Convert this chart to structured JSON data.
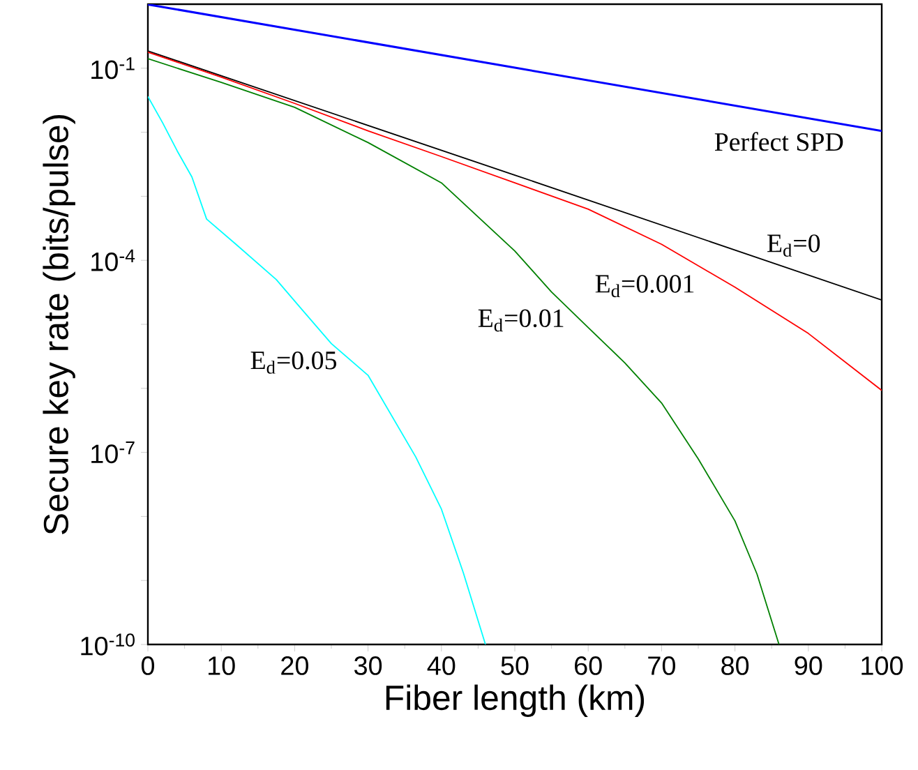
{
  "chart_data": {
    "type": "line",
    "xlabel": "Fiber length (km)",
    "ylabel": "Secure key rate (bits/pulse)",
    "log": "y",
    "xlim": [
      0,
      100
    ],
    "ylim": [
      1e-10,
      1
    ],
    "xticks": [
      0,
      10,
      20,
      30,
      40,
      50,
      60,
      70,
      80,
      90,
      100
    ],
    "yticks": [
      {
        "value": 1e-10,
        "label": "10$^{-10}$"
      },
      {
        "value": 1e-09,
        "label": null
      },
      {
        "value": 1e-08,
        "label": null
      },
      {
        "value": 1e-07,
        "label": "10$^{-7}$"
      },
      {
        "value": 1e-06,
        "label": null
      },
      {
        "value": 1e-05,
        "label": null
      },
      {
        "value": 0.0001,
        "label": "10$^{-4}$"
      },
      {
        "value": 0.001,
        "label": null
      },
      {
        "value": 0.01,
        "label": null
      },
      {
        "value": 0.1,
        "label": "10$^{-1}$"
      }
    ],
    "grid": false,
    "legend": false,
    "marker": "none",
    "line_style": "solid",
    "series": [
      {
        "name": "Perfect SPD",
        "color": "#0000ff",
        "x": [
          0,
          50,
          100
        ],
        "values": [
          0.99,
          0.102,
          0.0105
        ]
      },
      {
        "name": "E$_{d}$=0",
        "color": "#000000",
        "x": [
          0,
          50,
          100
        ],
        "values": [
          0.186,
          0.00214,
          2.4e-05
        ]
      },
      {
        "name": "E$_{d}$=0.001",
        "color": "#ff0000",
        "x": [
          0,
          10,
          20,
          30,
          40,
          50,
          60,
          70,
          80,
          90,
          100
        ],
        "values": [
          0.178,
          0.0724,
          0.0282,
          0.0105,
          0.00417,
          0.00162,
          0.00063,
          0.000178,
          3.8e-05,
          7.2e-06,
          9.3e-07
        ]
      },
      {
        "name": "E$_{d}$=0.01",
        "color": "#008000",
        "x": [
          0,
          10,
          20,
          30,
          40,
          50,
          55,
          60,
          65,
          70,
          75,
          80,
          83,
          86
        ],
        "values": [
          0.141,
          0.06,
          0.0245,
          0.0069,
          0.00162,
          0.00014,
          3.2e-05,
          8.9e-06,
          2.5e-06,
          5.9e-07,
          7.9e-08,
          8.5e-09,
          1.26e-09,
          1e-10
        ]
      },
      {
        "name": "E$_{d}$=0.05",
        "color": "#00ffff",
        "x": [
          0,
          2,
          4,
          6,
          8,
          12,
          17.5,
          21,
          25,
          30,
          36.5,
          40,
          43,
          46
        ],
        "values": [
          0.036,
          0.0141,
          0.0051,
          0.002,
          0.00044,
          0.000178,
          5e-05,
          1.7e-05,
          5e-06,
          1.6e-06,
          8.5e-08,
          1.3e-08,
          1.3e-09,
          1e-10
        ]
      }
    ]
  }
}
